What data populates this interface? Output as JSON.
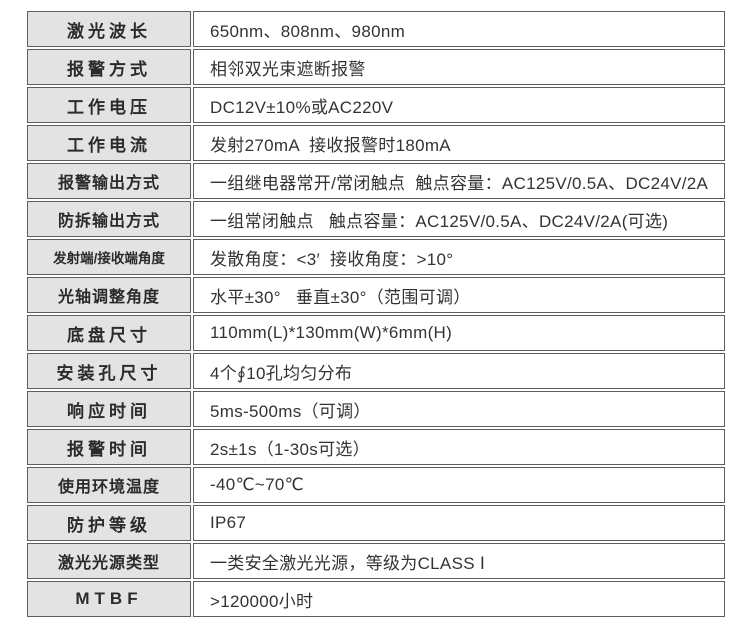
{
  "table": {
    "rows": [
      {
        "label": "激光波长",
        "value": "650nm、808nm、980nm"
      },
      {
        "label": "报警方式",
        "value": "相邻双光束遮断报警"
      },
      {
        "label": "工作电压",
        "value": "DC12V±10%或AC220V"
      },
      {
        "label": "工作电流",
        "value": "发射270mA  接收报警时180mA"
      },
      {
        "label": "报警输出方式",
        "value": "一组继电器常开/常闭触点  触点容量：AC125V/0.5A、DC24V/2A"
      },
      {
        "label": "防拆输出方式",
        "value": "一组常闭触点   触点容量：AC125V/0.5A、DC24V/2A(可选)"
      },
      {
        "label": "发射端/接收端角度",
        "value": "发散角度：<3′  接收角度：>10°"
      },
      {
        "label": "光轴调整角度",
        "value": "水平±30°   垂直±30°（范围可调）"
      },
      {
        "label": "底盘尺寸",
        "value": "110mm(L)*130mm(W)*6mm(H)"
      },
      {
        "label": "安装孔尺寸",
        "value": "4个∮10孔均匀分布"
      },
      {
        "label": "响应时间",
        "value": "5ms-500ms（可调）"
      },
      {
        "label": "报警时间",
        "value": "2s±1s（1-30s可选）"
      },
      {
        "label": "使用环境温度",
        "value": "-40℃~70℃"
      },
      {
        "label": "防护等级",
        "value": "IP67"
      },
      {
        "label": "激光光源类型",
        "value": "一类安全激光光源，等级为CLASS Ⅰ"
      },
      {
        "label": "MTBF",
        "value": ">120000小时"
      }
    ]
  },
  "colors": {
    "label_bg": "#e3e3e3",
    "border": "#5e5e5e",
    "text": "#2b2b2b"
  }
}
